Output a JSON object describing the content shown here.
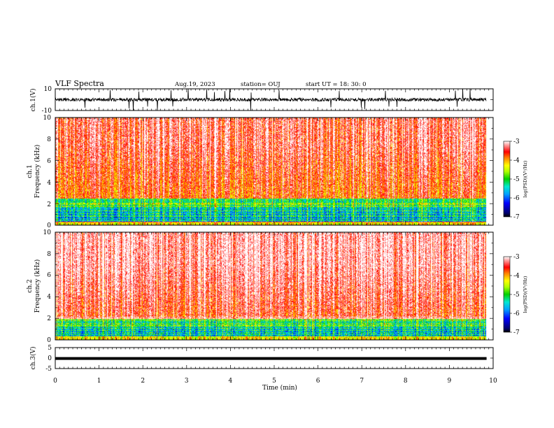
{
  "header": {
    "title": "VLF Spectra",
    "date": "Aug.19, 2023",
    "station": "station= OUJ",
    "start_ut": "start  UT =   18: 30: 0"
  },
  "chart_data": [
    {
      "type": "line",
      "panel": "waveform-ch1",
      "ylabel": "ch.1(V)",
      "ylim": [
        -10,
        10
      ],
      "yticks": [
        "10",
        "-10"
      ],
      "xlim": [
        0,
        10
      ],
      "data_extent_min": 9.85,
      "baseline": 0,
      "typical_amplitude": 1.5,
      "spike_amplitude": 10
    },
    {
      "type": "heatmap",
      "panel": "spectrogram-ch1",
      "ylabel": "ch.1\nFrequency (kHz)",
      "ylim": [
        0,
        10
      ],
      "yticks": [
        "0",
        "2",
        "4",
        "6",
        "8",
        "10"
      ],
      "xlim": [
        0,
        10
      ],
      "data_extent_min": 9.85,
      "colorbar": {
        "label": "log(PSD)(V²/Hz)",
        "range": [
          -7,
          -3
        ],
        "ticks": [
          "-3",
          "-4",
          "-5",
          "-6",
          "-7"
        ]
      },
      "low_freq_floor_khz": 2.5
    },
    {
      "type": "heatmap",
      "panel": "spectrogram-ch2",
      "ylabel": "ch.2\nFrequency (kHz)",
      "ylim": [
        0,
        10
      ],
      "yticks": [
        "0",
        "2",
        "4",
        "6",
        "8",
        "10"
      ],
      "xlim": [
        0,
        10
      ],
      "data_extent_min": 9.85,
      "colorbar": {
        "label": "log(PSD)(V²/Hz)",
        "range": [
          -7,
          -3
        ],
        "ticks": [
          "-3",
          "-4",
          "-5",
          "-6",
          "-7"
        ]
      },
      "low_freq_floor_khz": 2.0
    },
    {
      "type": "line",
      "panel": "waveform-ch3",
      "ylabel": "ch.3(V)",
      "ylim": [
        -5,
        5
      ],
      "yticks": [
        "5",
        "0",
        "-5"
      ],
      "xlim": [
        0,
        10
      ],
      "xlabel": "Time (min)",
      "xticks": [
        "0",
        "1",
        "2",
        "3",
        "4",
        "5",
        "6",
        "7",
        "8",
        "9",
        "10"
      ],
      "data_extent_min": 9.85,
      "constant_value": -0.2
    }
  ]
}
